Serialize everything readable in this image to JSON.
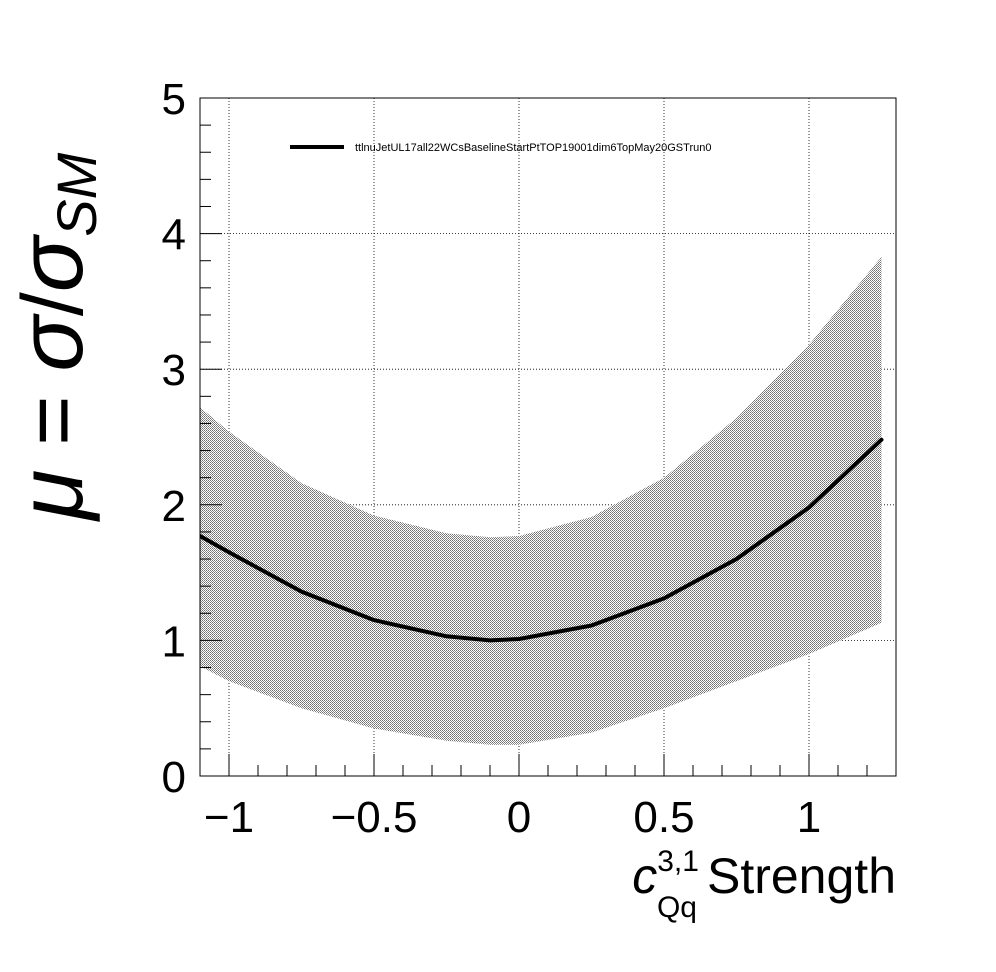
{
  "chart_data": {
    "type": "line",
    "title": "",
    "xlabel": {
      "symbol": "c",
      "superscript": "3,1",
      "subscript": "Qq",
      "text": "Strength"
    },
    "ylabel": {
      "mu": "μ",
      "eq": " = ",
      "sigma": "σ",
      "slash": "/",
      "sigma2": "σ",
      "subscript": "SM"
    },
    "xlim": [
      -1.1,
      1.3
    ],
    "ylim": [
      0,
      5
    ],
    "x_ticks": [
      {
        "value": -1,
        "label": "−1"
      },
      {
        "value": -0.5,
        "label": "−0.5"
      },
      {
        "value": 0,
        "label": "0"
      },
      {
        "value": 0.5,
        "label": "0.5"
      },
      {
        "value": 1,
        "label": "1"
      }
    ],
    "y_ticks": [
      {
        "value": 0,
        "label": "0"
      },
      {
        "value": 1,
        "label": "1"
      },
      {
        "value": 2,
        "label": "2"
      },
      {
        "value": 3,
        "label": "3"
      },
      {
        "value": 4,
        "label": "4"
      },
      {
        "value": 5,
        "label": "5"
      }
    ],
    "grid": true,
    "legend": {
      "position": "top",
      "entries": [
        "ttlnuJetUL17all22WCsBaselineStartPtTOP19001dim6TopMay20GSTrun0"
      ]
    },
    "series": [
      {
        "name": "ttlnuJetUL17all22WCsBaselineStartPtTOP19001dim6TopMay20GSTrun0",
        "color": "#000000",
        "x": [
          -1.1,
          -1.0,
          -0.75,
          -0.5,
          -0.25,
          -0.1,
          0.0,
          0.25,
          0.5,
          0.75,
          1.0,
          1.25
        ],
        "y": [
          1.77,
          1.65,
          1.36,
          1.15,
          1.03,
          1.0,
          1.01,
          1.11,
          1.31,
          1.6,
          1.98,
          2.48
        ]
      }
    ],
    "uncertainty_band": {
      "color": "#7a7a7a",
      "x": [
        -1.1,
        -1.0,
        -0.75,
        -0.5,
        -0.25,
        -0.1,
        0.0,
        0.25,
        0.5,
        0.75,
        1.0,
        1.25
      ],
      "upper": [
        2.72,
        2.54,
        2.16,
        1.92,
        1.79,
        1.76,
        1.77,
        1.91,
        2.2,
        2.64,
        3.18,
        3.83
      ],
      "lower": [
        0.81,
        0.7,
        0.5,
        0.35,
        0.26,
        0.23,
        0.23,
        0.32,
        0.5,
        0.7,
        0.9,
        1.13
      ]
    }
  }
}
